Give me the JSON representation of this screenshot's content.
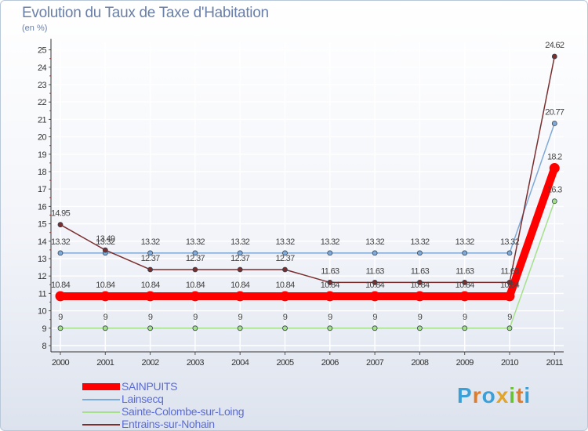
{
  "title": "Evolution du Taux de Taxe d'Habitation",
  "unit": "(en %)",
  "logo": "Proxiti",
  "chart_data": {
    "type": "line",
    "title": "Evolution du Taux de Taxe d'Habitation",
    "ylabel": "(en %)",
    "xlabel": "",
    "ylim": [
      8,
      25
    ],
    "yticks": [
      8,
      9,
      10,
      11,
      12,
      13,
      14,
      15,
      16,
      17,
      18,
      19,
      20,
      21,
      22,
      23,
      24,
      25
    ],
    "categories": [
      "2000",
      "2001",
      "2002",
      "2003",
      "2004",
      "2005",
      "2006",
      "2007",
      "2008",
      "2009",
      "2010",
      "2011"
    ],
    "legend_position": "bottom-left",
    "series": [
      {
        "name": "SAINPUITS",
        "color": "#ff0000",
        "emphasis": true,
        "values": [
          10.84,
          10.84,
          10.84,
          10.84,
          10.84,
          10.84,
          10.84,
          10.84,
          10.84,
          10.84,
          10.84,
          18.2
        ],
        "labels": [
          "10.84",
          "10.84",
          "10.84",
          "10.84",
          "10.84",
          "10.84",
          "10.84",
          "10.84",
          "10.84",
          "10.84",
          "10.84",
          "18.2"
        ]
      },
      {
        "name": "Lainsecq",
        "color": "#7faad8",
        "values": [
          13.32,
          13.32,
          13.32,
          13.32,
          13.32,
          13.32,
          13.32,
          13.32,
          13.32,
          13.32,
          13.32,
          20.77
        ],
        "labels": [
          "13.32",
          "13.32",
          "13.32",
          "13.32",
          "13.32",
          "13.32",
          "13.32",
          "13.32",
          "13.32",
          "13.32",
          "13.32",
          "20.77"
        ]
      },
      {
        "name": "Sainte-Colombe-sur-Loing",
        "color": "#a6e08a",
        "values": [
          9,
          9,
          9,
          9,
          9,
          9,
          9,
          9,
          9,
          9,
          9,
          16.3
        ],
        "labels": [
          "9",
          "9",
          "9",
          "9",
          "9",
          "9",
          "9",
          "9",
          "9",
          "9",
          "9",
          "16.3"
        ]
      },
      {
        "name": "Entrains-sur-Nohain",
        "color": "#7a2e2e",
        "values": [
          14.95,
          13.49,
          12.37,
          12.37,
          12.37,
          12.37,
          11.63,
          11.63,
          11.63,
          11.63,
          11.63,
          24.62
        ],
        "labels": [
          "14.95",
          "13.49",
          "12.37",
          "12.37",
          "12.37",
          "12.37",
          "11.63",
          "11.63",
          "11.63",
          "11.63",
          "11.63",
          "24.62"
        ]
      }
    ]
  }
}
